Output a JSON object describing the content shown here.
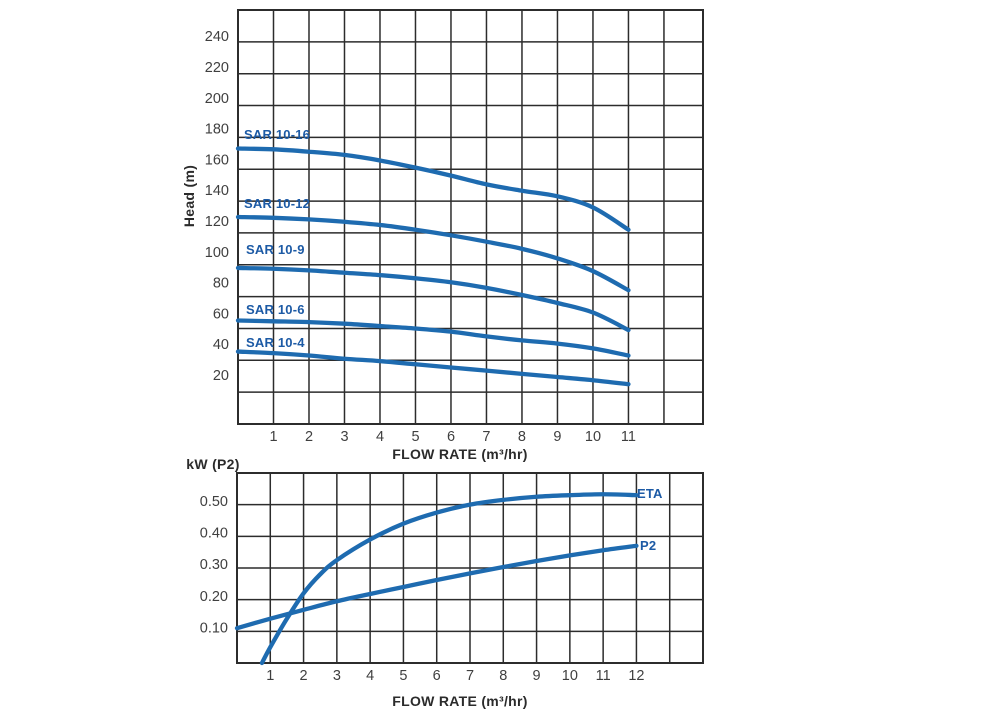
{
  "figure": {
    "background": "#ffffff"
  },
  "colors": {
    "curve": "#1e6bb0",
    "curve_label": "#1c5aa5",
    "grid": "#2c2c2c",
    "border": "#2c2c2c",
    "tick_label": "#3f3f3f",
    "axis_title": "#2b2b2b"
  },
  "chart_data": [
    {
      "type": "line",
      "title": "",
      "xlabel": "FLOW RATE (m³/hr)",
      "ylabel": "Head (m)",
      "xlim": [
        0,
        13.1
      ],
      "ylim": [
        0,
        260
      ],
      "grid": true,
      "legend_position": "inline-curve-labels",
      "x_gridlines": [
        1,
        2,
        3,
        4,
        5,
        6,
        7,
        8,
        9,
        10,
        11,
        12
      ],
      "y_gridlines": [
        20,
        40,
        60,
        80,
        100,
        120,
        140,
        160,
        180,
        200,
        220,
        240
      ],
      "x_ticks": [
        [
          1,
          "1"
        ],
        [
          2,
          "2"
        ],
        [
          3,
          "3"
        ],
        [
          4,
          "4"
        ],
        [
          5,
          "5"
        ],
        [
          6,
          "6"
        ],
        [
          7,
          "7"
        ],
        [
          8,
          "8"
        ],
        [
          9,
          "9"
        ],
        [
          10,
          "10"
        ],
        [
          11,
          "11"
        ]
      ],
      "y_ticks": [
        [
          20,
          "20"
        ],
        [
          40,
          "40"
        ],
        [
          60,
          "60"
        ],
        [
          80,
          "80"
        ],
        [
          100,
          "100"
        ],
        [
          120,
          "120"
        ],
        [
          140,
          "140"
        ],
        [
          160,
          "160"
        ],
        [
          180,
          "180"
        ],
        [
          200,
          "200"
        ],
        [
          220,
          "220"
        ],
        [
          240,
          "240"
        ]
      ],
      "series": [
        {
          "name": "SAR 10-16",
          "points": [
            [
              0,
              173
            ],
            [
              1,
              172.5
            ],
            [
              2,
              171
            ],
            [
              3,
              169
            ],
            [
              4,
              165.5
            ],
            [
              5,
              161
            ],
            [
              6,
              156
            ],
            [
              7,
              150.5
            ],
            [
              8,
              146.5
            ],
            [
              9,
              143
            ],
            [
              10,
              136
            ],
            [
              11,
              122
            ]
          ]
        },
        {
          "name": "SAR 10-12",
          "points": [
            [
              0,
              130
            ],
            [
              1,
              129.5
            ],
            [
              2,
              128.5
            ],
            [
              3,
              127
            ],
            [
              4,
              125
            ],
            [
              5,
              122
            ],
            [
              6,
              118.5
            ],
            [
              7,
              114.5
            ],
            [
              8,
              110
            ],
            [
              9,
              104
            ],
            [
              10,
              96
            ],
            [
              11,
              84
            ]
          ]
        },
        {
          "name": "SAR 10-9",
          "points": [
            [
              0,
              98
            ],
            [
              1,
              97.5
            ],
            [
              2,
              96.5
            ],
            [
              3,
              95
            ],
            [
              4,
              93.5
            ],
            [
              5,
              91.5
            ],
            [
              6,
              89
            ],
            [
              7,
              85.5
            ],
            [
              8,
              81
            ],
            [
              9,
              76
            ],
            [
              10,
              70
            ],
            [
              11,
              59
            ]
          ]
        },
        {
          "name": "SAR 10-6",
          "points": [
            [
              0,
              65
            ],
            [
              1,
              64.5
            ],
            [
              2,
              64
            ],
            [
              3,
              63
            ],
            [
              4,
              61.5
            ],
            [
              5,
              60
            ],
            [
              6,
              58
            ],
            [
              7,
              55
            ],
            [
              8,
              52.5
            ],
            [
              9,
              50.5
            ],
            [
              10,
              47.5
            ],
            [
              11,
              43
            ]
          ]
        },
        {
          "name": "SAR 10-4",
          "points": [
            [
              0,
              45.5
            ],
            [
              1,
              44.5
            ],
            [
              2,
              43
            ],
            [
              3,
              41
            ],
            [
              4,
              39.5
            ],
            [
              5,
              37.5
            ],
            [
              6,
              35.5
            ],
            [
              7,
              33.5
            ],
            [
              8,
              31.5
            ],
            [
              9,
              29.5
            ],
            [
              10,
              27.5
            ],
            [
              11,
              25
            ]
          ]
        }
      ]
    },
    {
      "type": "line",
      "title": "",
      "xlabel": "FLOW RATE (m³/hr)",
      "ylabel": "kW (P2)",
      "xlim": [
        0,
        14
      ],
      "ylim": [
        0,
        0.6
      ],
      "grid": true,
      "legend_position": "inline-curve-labels",
      "x_gridlines": [
        1,
        2,
        3,
        4,
        5,
        6,
        7,
        8,
        9,
        10,
        11,
        12,
        13
      ],
      "y_gridlines": [
        0.1,
        0.2,
        0.3,
        0.4,
        0.5
      ],
      "x_ticks": [
        [
          1,
          "1"
        ],
        [
          2,
          "2"
        ],
        [
          3,
          "3"
        ],
        [
          4,
          "4"
        ],
        [
          5,
          "5"
        ],
        [
          6,
          "6"
        ],
        [
          7,
          "7"
        ],
        [
          8,
          "8"
        ],
        [
          9,
          "9"
        ],
        [
          10,
          "10"
        ],
        [
          11,
          "11"
        ],
        [
          12,
          "12"
        ]
      ],
      "y_ticks": [
        [
          0.1,
          "0.10"
        ],
        [
          0.2,
          "0.20"
        ],
        [
          0.3,
          "0.30"
        ],
        [
          0.4,
          "0.40"
        ],
        [
          0.5,
          "0.50"
        ]
      ],
      "series": [
        {
          "name": "ETA",
          "points": [
            [
              0.75,
              0
            ],
            [
              1,
              0.05
            ],
            [
              1.5,
              0.14
            ],
            [
              2,
              0.22
            ],
            [
              2.5,
              0.28
            ],
            [
              3,
              0.325
            ],
            [
              4,
              0.39
            ],
            [
              5,
              0.44
            ],
            [
              6,
              0.475
            ],
            [
              7,
              0.5
            ],
            [
              8,
              0.515
            ],
            [
              9,
              0.525
            ],
            [
              10,
              0.53
            ],
            [
              11,
              0.533
            ],
            [
              12,
              0.53
            ]
          ]
        },
        {
          "name": "P2",
          "points": [
            [
              0,
              0.11
            ],
            [
              1,
              0.14
            ],
            [
              2,
              0.168
            ],
            [
              3,
              0.195
            ],
            [
              4,
              0.218
            ],
            [
              5,
              0.24
            ],
            [
              6,
              0.262
            ],
            [
              7,
              0.283
            ],
            [
              8,
              0.303
            ],
            [
              9,
              0.322
            ],
            [
              10,
              0.34
            ],
            [
              11,
              0.356
            ],
            [
              12,
              0.37
            ]
          ]
        }
      ]
    }
  ]
}
